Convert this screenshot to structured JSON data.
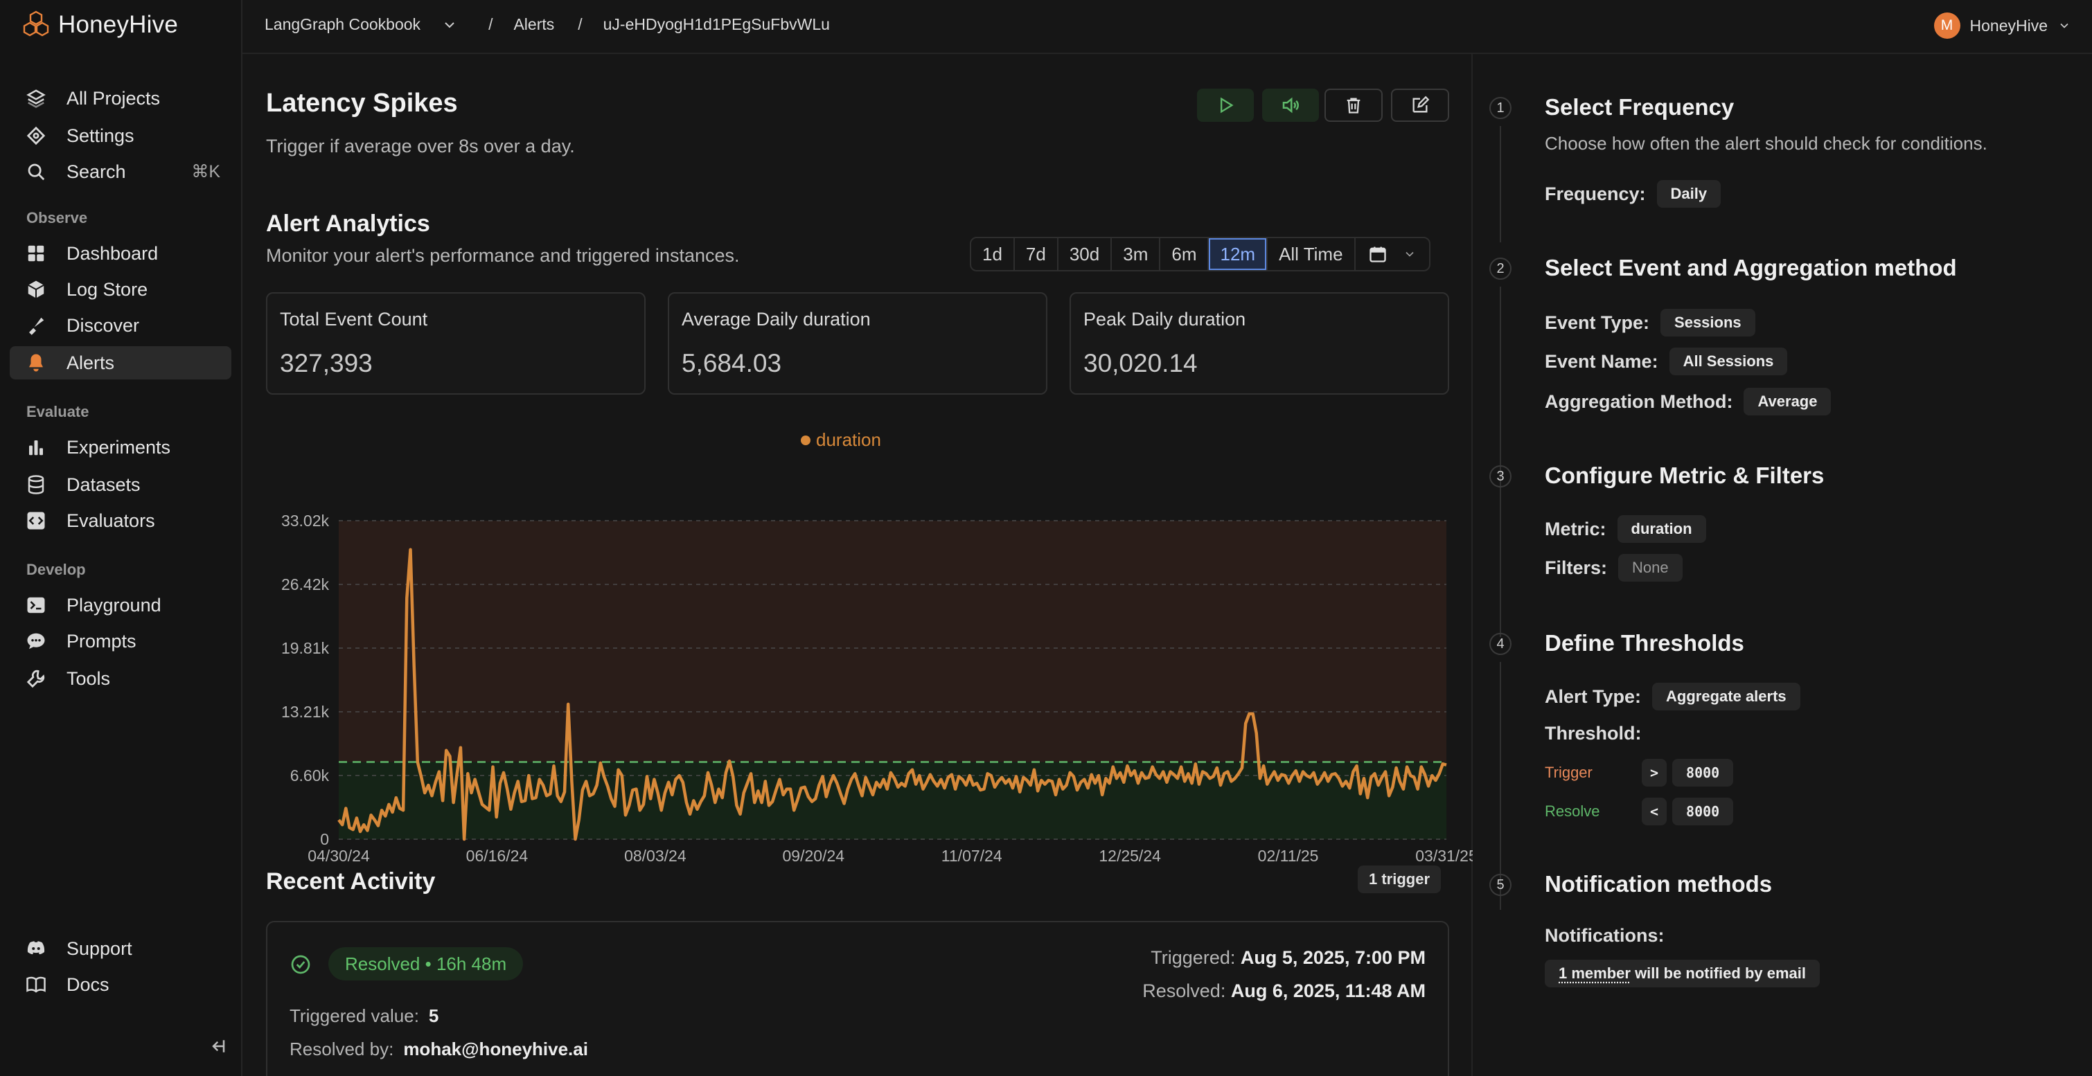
{
  "app": {
    "name": "HoneyHive"
  },
  "breadcrumb": {
    "project": "LangGraph Cookbook",
    "section": "Alerts",
    "alert_id": "uJ-eHDyogH1d1PEgSuFbvWLu"
  },
  "user": {
    "initial": "M",
    "name": "HoneyHive"
  },
  "sidebar": {
    "top_items": [
      {
        "label": "All Projects",
        "icon": "layers-icon"
      },
      {
        "label": "Settings",
        "icon": "settings-icon"
      },
      {
        "label": "Search",
        "icon": "search-icon",
        "shortcut": "⌘K"
      }
    ],
    "observe_label": "Observe",
    "observe_items": [
      {
        "label": "Dashboard",
        "icon": "dashboard-icon"
      },
      {
        "label": "Log Store",
        "icon": "cube-icon"
      },
      {
        "label": "Discover",
        "icon": "discover-icon"
      },
      {
        "label": "Alerts",
        "icon": "bell-icon",
        "active": true
      }
    ],
    "evaluate_label": "Evaluate",
    "evaluate_items": [
      {
        "label": "Experiments",
        "icon": "bar-chart-icon"
      },
      {
        "label": "Datasets",
        "icon": "database-icon"
      },
      {
        "label": "Evaluators",
        "icon": "code-icon"
      }
    ],
    "develop_label": "Develop",
    "develop_items": [
      {
        "label": "Playground",
        "icon": "terminal-icon"
      },
      {
        "label": "Prompts",
        "icon": "chat-icon"
      },
      {
        "label": "Tools",
        "icon": "wrench-icon"
      }
    ],
    "bottom_items": [
      {
        "label": "Support",
        "icon": "discord-icon"
      },
      {
        "label": "Docs",
        "icon": "book-icon"
      }
    ]
  },
  "alert": {
    "title": "Latency Spikes",
    "description": "Trigger if average over 8s over a day."
  },
  "analytics": {
    "title": "Alert Analytics",
    "subtitle": "Monitor your alert's performance and triggered instances.",
    "ranges": [
      "1d",
      "7d",
      "30d",
      "3m",
      "6m",
      "12m",
      "All Time"
    ],
    "selected_range": "12m",
    "stats": [
      {
        "label": "Total Event Count",
        "value": "327,393"
      },
      {
        "label": "Average Daily duration",
        "value": "5,684.03"
      },
      {
        "label": "Peak Daily duration",
        "value": "30,020.14"
      }
    ]
  },
  "chart_data": {
    "type": "line",
    "series": [
      {
        "name": "duration",
        "color": "#d8893a"
      }
    ],
    "x_start": "04/30/24",
    "x_end": "04/14/25",
    "x_ticks": [
      "04/30/24",
      "06/16/24",
      "08/03/24",
      "09/20/24",
      "11/07/24",
      "12/25/24",
      "02/11/25",
      "03/31/25"
    ],
    "y_ticks": [
      "0",
      "6.60k",
      "13.21k",
      "19.81k",
      "26.42k",
      "33.02k"
    ],
    "ylim": [
      0,
      33020
    ],
    "threshold_trigger": 8000,
    "threshold_resolve": 8000,
    "grid": true,
    "y_values": [
      2000,
      1500,
      3200,
      1200,
      1000,
      2200,
      800,
      1500,
      900,
      2500,
      2000,
      1400,
      3000,
      2400,
      3600,
      2800,
      4300,
      3200,
      3000,
      25000,
      30020,
      18000,
      8000,
      6500,
      4800,
      5600,
      4500,
      5900,
      7000,
      4000,
      9200,
      8600,
      3800,
      6800,
      9500,
      0,
      6800,
      4800,
      6200,
      4900,
      3600,
      3300,
      3000,
      7500,
      2300,
      5800,
      6900,
      5200,
      3100,
      4800,
      6000,
      3900,
      4000,
      6600,
      4200,
      4300,
      6200,
      5600,
      4500,
      4700,
      7600,
      4500,
      3900,
      4900,
      14000,
      6000,
      0,
      2000,
      5100,
      6000,
      4500,
      4700,
      5600,
      7900,
      6500,
      5500,
      4200,
      3400,
      7200,
      6600,
      2500,
      3500,
      5100,
      5200,
      3000,
      3600,
      6500,
      4200,
      6200,
      4800,
      3000,
      4800,
      5900,
      4600,
      6200,
      6600,
      5900,
      3800,
      2600,
      4000,
      3100,
      3900,
      4500,
      6900,
      5600,
      3800,
      5200,
      4300,
      6900,
      8100,
      6500,
      3500,
      2600,
      4800,
      5800,
      6800,
      3800,
      5000,
      3800,
      6000,
      3500,
      3900,
      5100,
      6200,
      4600,
      5200,
      5200,
      3000,
      4100,
      5300,
      5400,
      4400,
      3900,
      4200,
      5600,
      6500,
      4400,
      5700,
      6600,
      5800,
      4700,
      3700,
      5200,
      6200,
      6800,
      5600,
      4500,
      6400,
      5500,
      4600,
      5900,
      5400,
      6200,
      5200,
      6900,
      6300,
      5400,
      5800,
      5500,
      6800,
      7200,
      5700,
      6600,
      5200,
      5900,
      6700,
      6000,
      5500,
      6200,
      5300,
      6400,
      6700,
      5200,
      6500,
      6200,
      5600,
      6600,
      5600,
      5800,
      5100,
      5200,
      6800,
      6600,
      5400,
      6000,
      6400,
      5800,
      6200,
      5300,
      6500,
      4900,
      6400,
      6100,
      5600,
      7200,
      5000,
      6100,
      5700,
      6100,
      6000,
      4600,
      6200,
      5200,
      5600,
      6900,
      6500,
      5100,
      5900,
      6200,
      5300,
      6700,
      5800,
      6600,
      4600,
      6300,
      5800,
      7500,
      6300,
      6900,
      5900,
      7600,
      6600,
      7100,
      5800,
      6900,
      6300,
      6400,
      7500,
      6700,
      6300,
      7000,
      5900,
      7000,
      6700,
      6300,
      7500,
      6000,
      6800,
      5800,
      7800,
      5700,
      7000,
      6800,
      6300,
      6500,
      7400,
      5600,
      6800,
      7000,
      6000,
      6300,
      6800,
      7400,
      12000,
      13000,
      13000,
      11000,
      6300,
      7600,
      5700,
      6400,
      7000,
      6100,
      6700,
      6600,
      5800,
      6600,
      7100,
      6000,
      7000,
      6600,
      6400,
      6900,
      5700,
      6200,
      6900,
      6000,
      6700,
      6800,
      6300,
      5500,
      6000,
      5300,
      7000,
      7600,
      4700,
      6300,
      4300,
      6400,
      6800,
      5600,
      6400,
      7000,
      4500,
      5400,
      7400,
      6000,
      5200,
      7500,
      6600,
      6400,
      5200,
      7500,
      6700,
      5500,
      6600,
      6100,
      6800,
      7800,
      7700
    ]
  },
  "activity": {
    "title": "Recent Activity",
    "trigger_count": "1 trigger",
    "item": {
      "status": "Resolved • 16h 48m",
      "triggered_label": "Triggered:",
      "triggered_at": "Aug 5, 2025, 7:00 PM",
      "resolved_label": "Resolved:",
      "resolved_at": "Aug 6, 2025, 11:48 AM",
      "value_label": "Triggered value:",
      "value": "5",
      "resolved_by_label": "Resolved by:",
      "resolved_by": "mohak@honeyhive.ai"
    }
  },
  "steps": {
    "frequency": {
      "num": "1",
      "title": "Select Frequency",
      "desc": "Choose how often the alert should check for conditions.",
      "label": "Frequency:",
      "value": "Daily"
    },
    "event": {
      "num": "2",
      "title": "Select Event and Aggregation method",
      "type_label": "Event Type:",
      "type_value": "Sessions",
      "name_label": "Event Name:",
      "name_value": "All Sessions",
      "agg_label": "Aggregation Method:",
      "agg_value": "Average"
    },
    "metric": {
      "num": "3",
      "title": "Configure Metric & Filters",
      "metric_label": "Metric:",
      "metric_value": "duration",
      "filters_label": "Filters:",
      "filters_value": "None"
    },
    "thresholds": {
      "num": "4",
      "title": "Define Thresholds",
      "type_label": "Alert Type:",
      "type_value": "Aggregate alerts",
      "threshold_label": "Threshold:",
      "trigger_label": "Trigger",
      "trigger_op": ">",
      "trigger_value": "8000",
      "resolve_label": "Resolve",
      "resolve_op": "<",
      "resolve_value": "8000"
    },
    "notifications": {
      "num": "5",
      "title": "Notification methods",
      "label": "Notifications:",
      "member_text": "1 member",
      "rest_text": " will be notified by email"
    }
  },
  "colors": {
    "accent": "#d8893a",
    "trigger": "#e8895a",
    "resolve": "#5fb86a",
    "selected_range": "#5d88e0",
    "bell": "#e8823a"
  }
}
